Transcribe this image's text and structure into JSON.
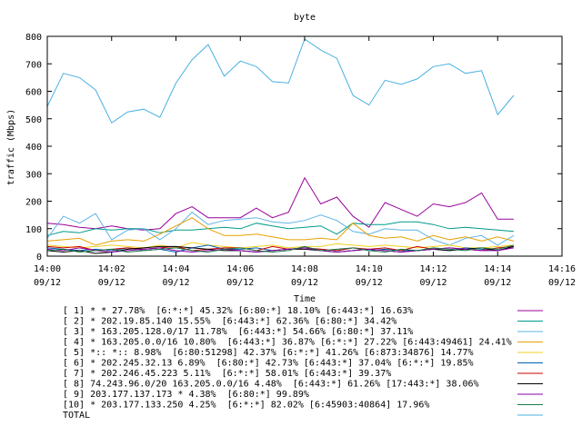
{
  "chart_data": {
    "type": "line",
    "title": "byte",
    "xlabel": "Time",
    "ylabel": "traffic (Mbps)",
    "ylim": [
      0,
      800
    ],
    "xlim_minutes": [
      0,
      16
    ],
    "yticks": [
      0,
      100,
      200,
      300,
      400,
      500,
      600,
      700,
      800
    ],
    "xticks": [
      {
        "m": 0,
        "time": "14:00",
        "date": "09/12"
      },
      {
        "m": 2,
        "time": "14:02",
        "date": "09/12"
      },
      {
        "m": 4,
        "time": "14:04",
        "date": "09/12"
      },
      {
        "m": 6,
        "time": "14:06",
        "date": "09/12"
      },
      {
        "m": 8,
        "time": "14:08",
        "date": "09/12"
      },
      {
        "m": 10,
        "time": "14:10",
        "date": "09/12"
      },
      {
        "m": 12,
        "time": "14:12",
        "date": "09/12"
      },
      {
        "m": 14,
        "time": "14:14",
        "date": "09/12"
      },
      {
        "m": 16,
        "time": "14:16",
        "date": "09/12"
      }
    ],
    "grid": false,
    "legend_position": "bottom",
    "x": [
      0,
      0.5,
      1,
      1.5,
      2,
      2.5,
      3,
      3.5,
      4,
      4.5,
      5,
      5.5,
      6,
      6.5,
      7,
      7.5,
      8,
      8.5,
      9,
      9.5,
      10,
      10.5,
      11,
      11.5,
      12,
      12.5,
      13,
      13.5,
      14,
      14.5
    ],
    "series": [
      {
        "name": "[ 1] * * 27.78%  [6:*:*] 45.32% [6:80:*] 18.10% [6:443:*] 16.63%",
        "color": "#9a009a",
        "values": [
          120,
          115,
          105,
          100,
          110,
          100,
          95,
          100,
          155,
          180,
          140,
          140,
          140,
          175,
          140,
          160,
          285,
          190,
          215,
          145,
          105,
          195,
          170,
          145,
          190,
          180,
          195,
          230,
          135,
          135
        ]
      },
      {
        "name": "[ 2] * 202.19.85.140 15.55%  [6:443:*] 62.36% [6:80:*] 34.42%",
        "color": "#009a8a",
        "values": [
          75,
          90,
          85,
          100,
          95,
          100,
          100,
          85,
          95,
          95,
          100,
          105,
          100,
          120,
          110,
          100,
          105,
          110,
          80,
          120,
          115,
          115,
          125,
          125,
          115,
          100,
          105,
          100,
          95,
          90
        ]
      },
      {
        "name": "[ 3] * 163.205.128.0/17 11.78%  [6:443:*] 54.66% [6:80:*] 37.11%",
        "color": "#5fb4e6",
        "values": [
          65,
          145,
          120,
          155,
          60,
          95,
          100,
          60,
          100,
          160,
          115,
          130,
          135,
          140,
          125,
          120,
          130,
          150,
          130,
          90,
          80,
          100,
          95,
          95,
          60,
          40,
          65,
          75,
          40,
          75
        ]
      },
      {
        "name": "[ 4] * 163.205.0.0/16 10.80%  [6:443:*] 36.87% [6:*:*] 27.22% [6:443:49461] 24.41%",
        "color": "#e6a100",
        "values": [
          55,
          60,
          65,
          40,
          55,
          60,
          55,
          80,
          110,
          140,
          100,
          75,
          75,
          80,
          70,
          60,
          60,
          65,
          60,
          120,
          75,
          65,
          70,
          55,
          75,
          60,
          70,
          55,
          70,
          55
        ]
      },
      {
        "name": "[ 5] *:: *:: 8.98%  [6:80:51298] 42.37% [6:*:*] 41.26% [6:873:34876] 14.77%",
        "color": "#f0d020",
        "values": [
          40,
          35,
          30,
          35,
          40,
          35,
          30,
          40,
          30,
          50,
          40,
          35,
          30,
          35,
          40,
          30,
          35,
          35,
          45,
          40,
          35,
          40,
          35,
          30,
          35,
          40,
          30,
          30,
          35,
          40
        ]
      },
      {
        "name": "[ 6] * 202.245.32.13 6.89%  [6:80:*] 42.73% [6:443:*] 37.04% [6:*:*] 19.85%",
        "color": "#0060b0",
        "values": [
          30,
          25,
          20,
          25,
          20,
          30,
          20,
          25,
          15,
          30,
          40,
          25,
          25,
          30,
          20,
          25,
          30,
          25,
          20,
          30,
          20,
          25,
          20,
          20,
          25,
          20,
          30,
          25,
          20,
          35
        ]
      },
      {
        "name": "[ 7] * 202.246.45.223 5.11%  [6:*:*] 58.01% [6:443:*] 39.37%",
        "color": "#cc0000",
        "values": [
          35,
          30,
          35,
          20,
          25,
          30,
          25,
          30,
          35,
          20,
          25,
          30,
          30,
          20,
          35,
          25,
          30,
          25,
          20,
          30,
          25,
          30,
          20,
          35,
          25,
          30,
          25,
          20,
          30,
          35
        ]
      },
      {
        "name": "[ 8] 74.243.96.0/20 163.205.0.0/16 4.48%  [6:443:*] 61.26% [17:443:*] 38.06%",
        "color": "#000000",
        "values": [
          20,
          15,
          20,
          10,
          15,
          25,
          30,
          35,
          35,
          30,
          25,
          20,
          20,
          15,
          20,
          25,
          25,
          20,
          15,
          20,
          25,
          20,
          15,
          20,
          25,
          20,
          25,
          30,
          20,
          35
        ]
      },
      {
        "name": "[ 9] 203.177.137.173 * 4.38%  [6:80:*] 99.89%",
        "color": "#8a00aa",
        "values": [
          25,
          20,
          30,
          20,
          15,
          20,
          25,
          30,
          20,
          15,
          20,
          25,
          20,
          15,
          20,
          25,
          30,
          20,
          15,
          20,
          25,
          20,
          15,
          20,
          25,
          30,
          25,
          20,
          20,
          30
        ]
      },
      {
        "name": "[10] * 203.177.133.250 4.25%  [6:*:*] 82.02% [6:45903:40864] 17.96%",
        "color": "#1a7a4a",
        "values": [
          20,
          25,
          15,
          20,
          25,
          15,
          20,
          25,
          30,
          20,
          15,
          25,
          30,
          20,
          15,
          20,
          35,
          20,
          25,
          30,
          20,
          15,
          25,
          20,
          30,
          25,
          20,
          30,
          25,
          40
        ]
      },
      {
        "name": "TOTAL",
        "color": "#4ab0e0",
        "values": [
          545,
          665,
          650,
          605,
          485,
          525,
          535,
          505,
          630,
          715,
          770,
          655,
          710,
          690,
          635,
          630,
          790,
          750,
          720,
          585,
          550,
          640,
          625,
          645,
          690,
          700,
          665,
          675,
          515,
          585
        ]
      }
    ]
  }
}
